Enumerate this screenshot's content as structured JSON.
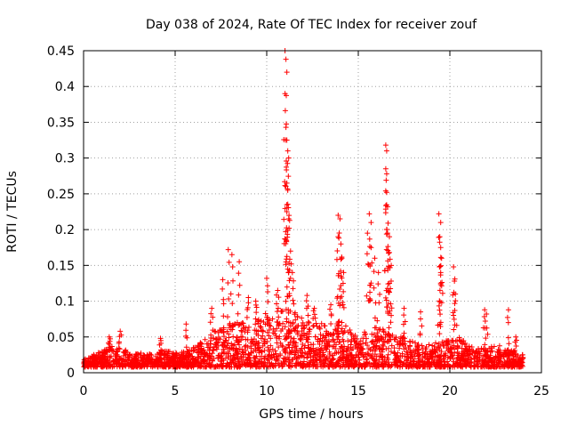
{
  "chart_data": {
    "type": "scatter",
    "title": "Day 038 of 2024, Rate Of TEC Index for receiver zouf",
    "xlabel": "GPS time / hours",
    "ylabel": "ROTI / TECUs",
    "xlim": [
      0,
      25
    ],
    "ylim": [
      0,
      0.45
    ],
    "x_ticks": [
      "0",
      "5",
      "10",
      "15",
      "20",
      "25"
    ],
    "y_ticks": [
      "0",
      "0.05",
      "0.1",
      "0.15",
      "0.2",
      "0.25",
      "0.3",
      "0.35",
      "0.4",
      "0.45"
    ],
    "grid": true,
    "marker": "+",
    "color": "#ff0000",
    "series": [
      {
        "name": "ROTI",
        "baseline_envelope": {
          "x": [
            0,
            0.5,
            1,
            1.5,
            2,
            2.5,
            3,
            3.5,
            4,
            4.5,
            5,
            5.5,
            6,
            6.5,
            7,
            7.5,
            8,
            8.5,
            9,
            9.5,
            10,
            10.5,
            11,
            11.5,
            12,
            12.5,
            13,
            13.5,
            14,
            14.5,
            15,
            15.5,
            16,
            16.5,
            17,
            17.5,
            18,
            18.5,
            19,
            19.5,
            20,
            20.5,
            21,
            21.5,
            22,
            22.5,
            23,
            23.5,
            24
          ],
          "y": [
            0.018,
            0.025,
            0.03,
            0.038,
            0.035,
            0.03,
            0.028,
            0.026,
            0.028,
            0.032,
            0.028,
            0.03,
            0.035,
            0.045,
            0.055,
            0.065,
            0.07,
            0.075,
            0.07,
            0.075,
            0.08,
            0.085,
            0.09,
            0.085,
            0.075,
            0.07,
            0.07,
            0.065,
            0.075,
            0.06,
            0.055,
            0.06,
            0.065,
            0.06,
            0.055,
            0.05,
            0.045,
            0.04,
            0.04,
            0.045,
            0.045,
            0.05,
            0.04,
            0.035,
            0.035,
            0.04,
            0.035,
            0.03,
            0.025
          ]
        },
        "peaks": [
          {
            "x": 1.4,
            "y": 0.05
          },
          {
            "x": 2.0,
            "y": 0.058
          },
          {
            "x": 4.2,
            "y": 0.048
          },
          {
            "x": 5.6,
            "y": 0.068
          },
          {
            "x": 7.0,
            "y": 0.09
          },
          {
            "x": 7.6,
            "y": 0.13
          },
          {
            "x": 7.9,
            "y": 0.172
          },
          {
            "x": 8.1,
            "y": 0.165
          },
          {
            "x": 8.5,
            "y": 0.155
          },
          {
            "x": 9.0,
            "y": 0.105
          },
          {
            "x": 9.4,
            "y": 0.1
          },
          {
            "x": 10.0,
            "y": 0.132
          },
          {
            "x": 10.6,
            "y": 0.115
          },
          {
            "x": 11.0,
            "y": 0.45
          },
          {
            "x": 11.05,
            "y": 0.438
          },
          {
            "x": 11.1,
            "y": 0.42
          },
          {
            "x": 11.0,
            "y": 0.39
          },
          {
            "x": 11.05,
            "y": 0.343
          },
          {
            "x": 11.1,
            "y": 0.325
          },
          {
            "x": 11.15,
            "y": 0.31
          },
          {
            "x": 11.2,
            "y": 0.3
          },
          {
            "x": 11.1,
            "y": 0.265
          },
          {
            "x": 11.15,
            "y": 0.255
          },
          {
            "x": 11.1,
            "y": 0.225
          },
          {
            "x": 11.2,
            "y": 0.215
          },
          {
            "x": 11.3,
            "y": 0.17
          },
          {
            "x": 11.4,
            "y": 0.14
          },
          {
            "x": 12.2,
            "y": 0.108
          },
          {
            "x": 12.6,
            "y": 0.09
          },
          {
            "x": 13.5,
            "y": 0.095
          },
          {
            "x": 13.9,
            "y": 0.22
          },
          {
            "x": 14.0,
            "y": 0.215
          },
          {
            "x": 13.9,
            "y": 0.19
          },
          {
            "x": 14.05,
            "y": 0.18
          },
          {
            "x": 14.1,
            "y": 0.16
          },
          {
            "x": 14.2,
            "y": 0.14
          },
          {
            "x": 15.6,
            "y": 0.222
          },
          {
            "x": 15.7,
            "y": 0.21
          },
          {
            "x": 15.5,
            "y": 0.195
          },
          {
            "x": 15.7,
            "y": 0.175
          },
          {
            "x": 15.9,
            "y": 0.16
          },
          {
            "x": 16.1,
            "y": 0.14
          },
          {
            "x": 16.5,
            "y": 0.318
          },
          {
            "x": 16.55,
            "y": 0.31
          },
          {
            "x": 16.5,
            "y": 0.285
          },
          {
            "x": 16.55,
            "y": 0.278
          },
          {
            "x": 16.55,
            "y": 0.252
          },
          {
            "x": 16.6,
            "y": 0.232
          },
          {
            "x": 16.6,
            "y": 0.195
          },
          {
            "x": 16.7,
            "y": 0.19
          },
          {
            "x": 16.7,
            "y": 0.168
          },
          {
            "x": 16.8,
            "y": 0.15
          },
          {
            "x": 16.7,
            "y": 0.125
          },
          {
            "x": 17.5,
            "y": 0.09
          },
          {
            "x": 18.4,
            "y": 0.085
          },
          {
            "x": 19.4,
            "y": 0.222
          },
          {
            "x": 19.5,
            "y": 0.21
          },
          {
            "x": 19.45,
            "y": 0.19
          },
          {
            "x": 19.5,
            "y": 0.175
          },
          {
            "x": 19.55,
            "y": 0.16
          },
          {
            "x": 19.5,
            "y": 0.14
          },
          {
            "x": 20.2,
            "y": 0.148
          },
          {
            "x": 20.25,
            "y": 0.128
          },
          {
            "x": 20.3,
            "y": 0.11
          },
          {
            "x": 21.9,
            "y": 0.088
          },
          {
            "x": 22.0,
            "y": 0.082
          },
          {
            "x": 23.2,
            "y": 0.088
          },
          {
            "x": 23.6,
            "y": 0.05
          }
        ]
      }
    ]
  }
}
